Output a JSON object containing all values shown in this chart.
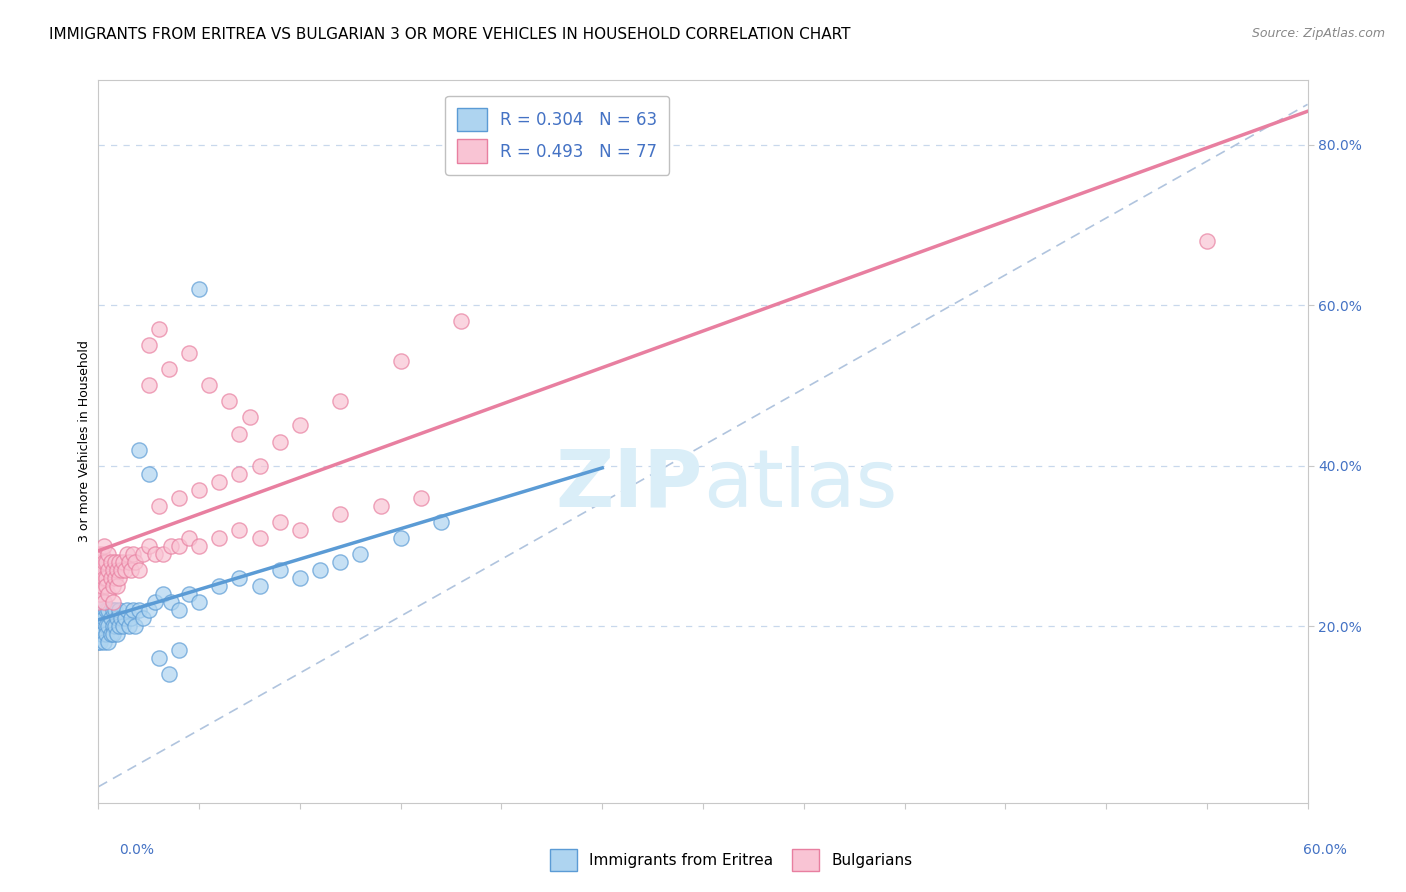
{
  "title": "IMMIGRANTS FROM ERITREA VS BULGARIAN 3 OR MORE VEHICLES IN HOUSEHOLD CORRELATION CHART",
  "source": "Source: ZipAtlas.com",
  "ylabel": "3 or more Vehicles in Household",
  "xlim": [
    0,
    0.6
  ],
  "ylim": [
    -0.02,
    0.88
  ],
  "y_ticks": [
    0.2,
    0.4,
    0.6,
    0.8
  ],
  "y_tick_labels": [
    "20.0%",
    "40.0%",
    "60.0%",
    "80.0%"
  ],
  "series1_name": "Immigrants from Eritrea",
  "series1_R": 0.304,
  "series1_N": 63,
  "series1_color": "#aed4f0",
  "series1_edge_color": "#5b9bd5",
  "series1_line_color": "#5b9bd5",
  "series2_name": "Bulgarians",
  "series2_R": 0.493,
  "series2_N": 77,
  "series2_color": "#f9c4d4",
  "series2_edge_color": "#e87fa0",
  "series2_line_color": "#e87fa0",
  "ref_line_color": "#b0c4de",
  "background_color": "#ffffff",
  "grid_color": "#c8d8ec",
  "watermark_color": "#daeef8",
  "title_fontsize": 11,
  "source_fontsize": 9,
  "tick_label_fontsize": 10,
  "legend_fontsize": 12,
  "series1_x": [
    0.0,
    0.0,
    0.0,
    0.001,
    0.001,
    0.001,
    0.001,
    0.002,
    0.002,
    0.002,
    0.003,
    0.003,
    0.003,
    0.004,
    0.004,
    0.004,
    0.005,
    0.005,
    0.005,
    0.006,
    0.006,
    0.007,
    0.007,
    0.007,
    0.008,
    0.008,
    0.009,
    0.009,
    0.01,
    0.01,
    0.011,
    0.012,
    0.013,
    0.014,
    0.015,
    0.016,
    0.017,
    0.018,
    0.02,
    0.022,
    0.025,
    0.028,
    0.032,
    0.036,
    0.04,
    0.045,
    0.05,
    0.06,
    0.07,
    0.08,
    0.09,
    0.1,
    0.11,
    0.12,
    0.13,
    0.15,
    0.17,
    0.02,
    0.025,
    0.03,
    0.035,
    0.04,
    0.05
  ],
  "series1_y": [
    0.2,
    0.22,
    0.18,
    0.19,
    0.21,
    0.23,
    0.18,
    0.2,
    0.22,
    0.19,
    0.21,
    0.18,
    0.23,
    0.2,
    0.22,
    0.19,
    0.2,
    0.22,
    0.18,
    0.19,
    0.21,
    0.2,
    0.22,
    0.19,
    0.2,
    0.22,
    0.19,
    0.21,
    0.2,
    0.22,
    0.21,
    0.2,
    0.21,
    0.22,
    0.2,
    0.21,
    0.22,
    0.2,
    0.22,
    0.21,
    0.22,
    0.23,
    0.24,
    0.23,
    0.22,
    0.24,
    0.23,
    0.25,
    0.26,
    0.25,
    0.27,
    0.26,
    0.27,
    0.28,
    0.29,
    0.31,
    0.33,
    0.42,
    0.39,
    0.16,
    0.14,
    0.17,
    0.62
  ],
  "series2_x": [
    0.0,
    0.0,
    0.0,
    0.0,
    0.001,
    0.001,
    0.001,
    0.002,
    0.002,
    0.002,
    0.003,
    0.003,
    0.003,
    0.003,
    0.004,
    0.004,
    0.004,
    0.005,
    0.005,
    0.005,
    0.006,
    0.006,
    0.007,
    0.007,
    0.007,
    0.008,
    0.008,
    0.009,
    0.009,
    0.01,
    0.01,
    0.011,
    0.012,
    0.013,
    0.014,
    0.015,
    0.016,
    0.017,
    0.018,
    0.02,
    0.022,
    0.025,
    0.028,
    0.032,
    0.036,
    0.04,
    0.045,
    0.05,
    0.06,
    0.07,
    0.08,
    0.09,
    0.1,
    0.12,
    0.14,
    0.16,
    0.03,
    0.04,
    0.05,
    0.06,
    0.07,
    0.08,
    0.09,
    0.1,
    0.12,
    0.15,
    0.55,
    0.18,
    0.025,
    0.03,
    0.025,
    0.035,
    0.045,
    0.055,
    0.065,
    0.07,
    0.075
  ],
  "series2_y": [
    0.25,
    0.27,
    0.29,
    0.23,
    0.26,
    0.28,
    0.24,
    0.27,
    0.25,
    0.29,
    0.26,
    0.28,
    0.23,
    0.3,
    0.26,
    0.28,
    0.25,
    0.27,
    0.24,
    0.29,
    0.26,
    0.28,
    0.25,
    0.27,
    0.23,
    0.26,
    0.28,
    0.25,
    0.27,
    0.26,
    0.28,
    0.27,
    0.28,
    0.27,
    0.29,
    0.28,
    0.27,
    0.29,
    0.28,
    0.27,
    0.29,
    0.3,
    0.29,
    0.29,
    0.3,
    0.3,
    0.31,
    0.3,
    0.31,
    0.32,
    0.31,
    0.33,
    0.32,
    0.34,
    0.35,
    0.36,
    0.35,
    0.36,
    0.37,
    0.38,
    0.39,
    0.4,
    0.43,
    0.45,
    0.48,
    0.53,
    0.68,
    0.58,
    0.55,
    0.57,
    0.5,
    0.52,
    0.54,
    0.5,
    0.48,
    0.44,
    0.46
  ]
}
